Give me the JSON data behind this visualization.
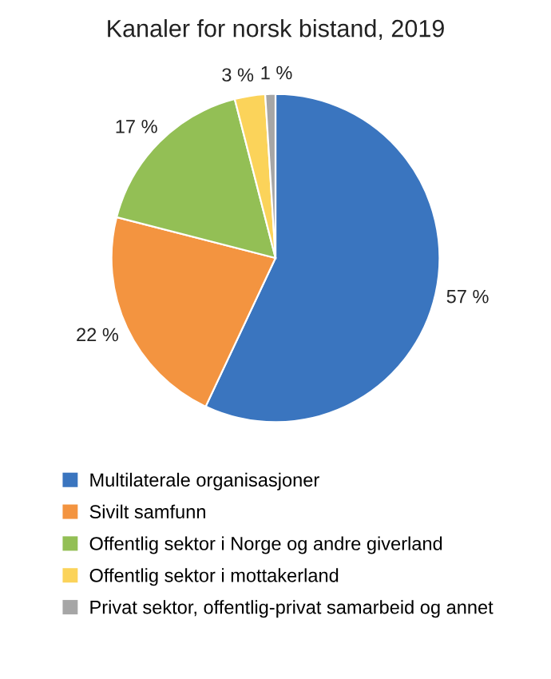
{
  "chart_data": {
    "type": "pie",
    "title": "Kanaler for norsk bistand, 2019",
    "categories": [
      "Multilaterale organisasjoner",
      "Sivilt samfunn",
      "Offentlig sektor i Norge og andre giverland",
      "Offentlig sektor i mottakerland",
      "Privat sektor, offentlig-privat samarbeid og annet"
    ],
    "values": [
      57,
      22,
      17,
      3,
      1
    ],
    "colors": [
      "#3a75bf",
      "#f39440",
      "#93bf55",
      "#fbd35a",
      "#a6a6a6"
    ],
    "value_labels": [
      "57 %",
      "22 %",
      "17 %",
      "3 %",
      "1 %"
    ],
    "legend": "bottom"
  }
}
